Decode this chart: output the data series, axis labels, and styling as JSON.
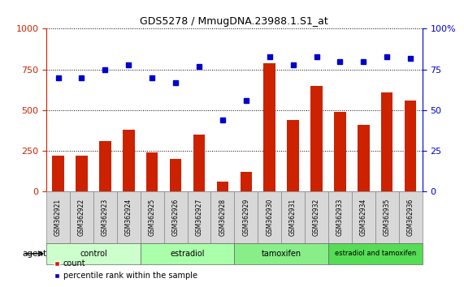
{
  "title": "GDS5278 / MmugDNA.23988.1.S1_at",
  "samples": [
    "GSM362921",
    "GSM362922",
    "GSM362923",
    "GSM362924",
    "GSM362925",
    "GSM362926",
    "GSM362927",
    "GSM362928",
    "GSM362929",
    "GSM362930",
    "GSM362931",
    "GSM362932",
    "GSM362933",
    "GSM362934",
    "GSM362935",
    "GSM362936"
  ],
  "counts": [
    220,
    220,
    310,
    380,
    240,
    200,
    350,
    60,
    120,
    790,
    440,
    650,
    490,
    410,
    610,
    560
  ],
  "percentiles": [
    70,
    70,
    75,
    78,
    70,
    67,
    77,
    44,
    56,
    83,
    78,
    83,
    80,
    80,
    83,
    82
  ],
  "bar_color": "#cc2200",
  "dot_color": "#0000cc",
  "ylim_left": [
    0,
    1000
  ],
  "ylim_right": [
    0,
    100
  ],
  "yticks_left": [
    0,
    250,
    500,
    750,
    1000
  ],
  "yticks_right": [
    0,
    25,
    50,
    75,
    100
  ],
  "groups": [
    {
      "label": "control",
      "start": 0,
      "end": 4
    },
    {
      "label": "estradiol",
      "start": 4,
      "end": 8
    },
    {
      "label": "tamoxifen",
      "start": 8,
      "end": 12
    },
    {
      "label": "estradiol and tamoxifen",
      "start": 12,
      "end": 16
    }
  ],
  "group_colors": [
    "#ccffcc",
    "#aaffaa",
    "#88ee88",
    "#55dd55"
  ],
  "agent_label": "agent",
  "legend_count_label": "count",
  "legend_pct_label": "percentile rank within the sample",
  "background_color": "#ffffff",
  "tick_label_color_left": "#cc2200",
  "tick_label_color_right": "#0000cc",
  "bar_width": 0.5,
  "xlabel_bg": "#d8d8d8",
  "xlabel_border": "#888888"
}
